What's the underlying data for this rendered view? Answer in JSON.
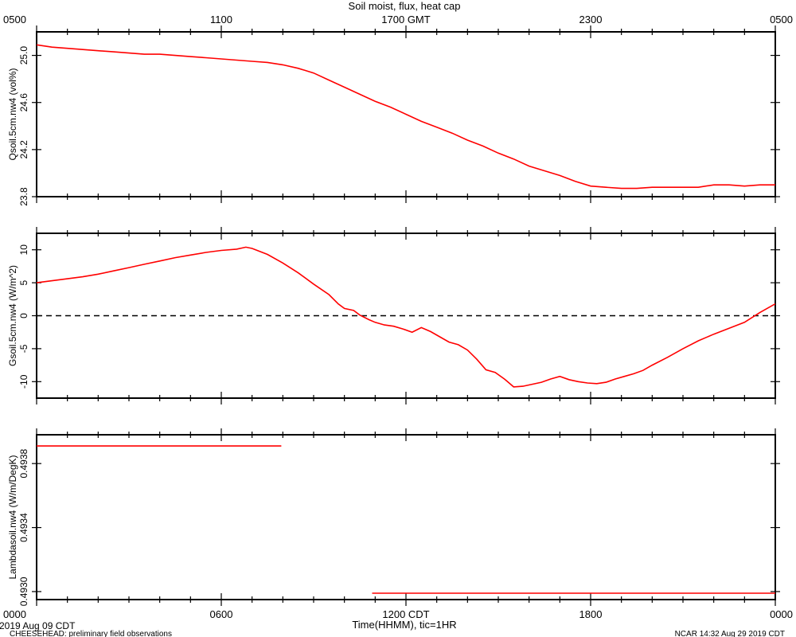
{
  "chart_data": {
    "type": "line",
    "title": "Soil moist, flux, heat cap",
    "top_axis": {
      "ticks": [
        "0500",
        "1100",
        "1700 GMT",
        "2300",
        "0500"
      ]
    },
    "bottom_axis": {
      "ticks": [
        "0000",
        "0600",
        "1200 CDT",
        "1800",
        "0000"
      ],
      "xlabel": "Time(HHMM), tic=1HR",
      "x_unit": "hours since 2019 Aug 09 00:00 CDT",
      "xlim": [
        0,
        24
      ]
    },
    "footer": {
      "date": "2019 Aug 09 CDT",
      "project": "CHEESEHEAD: preliminary field observations",
      "stamp": "NCAR 14:32 Aug 29 2019 CDT"
    },
    "panels": [
      {
        "ylabel": "Qsoil.5cm.nw4 (vol%)",
        "ylim": [
          23.8,
          25.2
        ],
        "yticks": [
          "23.8",
          "24.2",
          "24.6",
          "25.0"
        ],
        "ytick_values": [
          23.8,
          24.2,
          24.6,
          25.0
        ],
        "series": [
          {
            "color": "#ff0000",
            "x": [
              0,
              0.5,
              1,
              1.5,
              2,
              2.5,
              3,
              3.5,
              4,
              4.5,
              5,
              5.5,
              6,
              6.5,
              7,
              7.5,
              8,
              8.5,
              9,
              9.5,
              10,
              10.5,
              11,
              11.5,
              12,
              12.5,
              13,
              13.5,
              14,
              14.5,
              15,
              15.5,
              16,
              16.5,
              17,
              17.5,
              18,
              18.5,
              19,
              19.5,
              20,
              20.5,
              21,
              21.5,
              22,
              22.5,
              23,
              23.5,
              24
            ],
            "y": [
              25.09,
              25.07,
              25.06,
              25.05,
              25.04,
              25.03,
              25.02,
              25.01,
              25.01,
              25.0,
              24.99,
              24.98,
              24.97,
              24.96,
              24.95,
              24.94,
              24.92,
              24.89,
              24.85,
              24.79,
              24.73,
              24.67,
              24.61,
              24.56,
              24.5,
              24.44,
              24.39,
              24.34,
              24.28,
              24.23,
              24.17,
              24.12,
              24.06,
              24.02,
              23.98,
              23.93,
              23.89,
              23.88,
              23.87,
              23.87,
              23.88,
              23.88,
              23.88,
              23.88,
              23.9,
              23.9,
              23.89,
              23.9,
              23.9
            ]
          }
        ]
      },
      {
        "ylabel": "Gsoil.5cm.nw4 (W/m^2)",
        "ylim": [
          -12.5,
          12.5
        ],
        "yticks": [
          "10",
          "5",
          "0",
          "-5",
          "-10"
        ],
        "ytick_values": [
          10,
          5,
          0,
          -5,
          -10
        ],
        "reference_line": 0,
        "series": [
          {
            "color": "#ff0000",
            "x": [
              0,
              0.5,
              1,
              1.5,
              2,
              2.5,
              3,
              3.5,
              4,
              4.5,
              5,
              5.5,
              6,
              6.5,
              6.8,
              7,
              7.5,
              8,
              8.5,
              9,
              9.5,
              9.8,
              10,
              10.3,
              10.5,
              10.8,
              11,
              11.3,
              11.6,
              11.9,
              12.2,
              12.5,
              12.8,
              13.1,
              13.4,
              13.7,
              14,
              14.3,
              14.6,
              14.9,
              15.2,
              15.5,
              15.8,
              16.1,
              16.4,
              16.7,
              17,
              17.3,
              17.6,
              17.9,
              18.2,
              18.5,
              18.8,
              19.1,
              19.4,
              19.7,
              20,
              20.5,
              21,
              21.5,
              22,
              22.5,
              23,
              23.5,
              24
            ],
            "y": [
              5.0,
              5.3,
              5.6,
              5.9,
              6.3,
              6.8,
              7.3,
              7.8,
              8.3,
              8.8,
              9.2,
              9.6,
              9.9,
              10.1,
              10.4,
              10.2,
              9.3,
              8.0,
              6.5,
              4.8,
              3.2,
              1.8,
              1.1,
              0.8,
              0.1,
              -0.6,
              -1.0,
              -1.4,
              -1.6,
              -2.0,
              -2.5,
              -1.8,
              -2.4,
              -3.2,
              -4.0,
              -4.4,
              -5.2,
              -6.6,
              -8.2,
              -8.6,
              -9.6,
              -10.8,
              -10.7,
              -10.4,
              -10.1,
              -9.6,
              -9.2,
              -9.7,
              -10.0,
              -10.2,
              -10.3,
              -10.1,
              -9.6,
              -9.2,
              -8.8,
              -8.3,
              -7.5,
              -6.3,
              -5.0,
              -3.8,
              -2.8,
              -1.9,
              -1.0,
              0.5,
              1.8
            ]
          }
        ]
      },
      {
        "ylabel": "Lambdasoil.nw4 (W/m/DegK)",
        "ylim": [
          0.49295,
          0.49398
        ],
        "yticks": [
          "0.4930",
          "0.4934",
          "0.4938"
        ],
        "ytick_values": [
          0.493,
          0.4934,
          0.4938
        ],
        "series": [
          {
            "color": "#ff0000",
            "x": [
              0,
              7.95
            ],
            "y": [
              0.49391,
              0.49391
            ]
          },
          {
            "color": "#ff0000",
            "x": [
              10.9,
              24
            ],
            "y": [
              0.49299,
              0.49299
            ]
          }
        ]
      }
    ]
  }
}
